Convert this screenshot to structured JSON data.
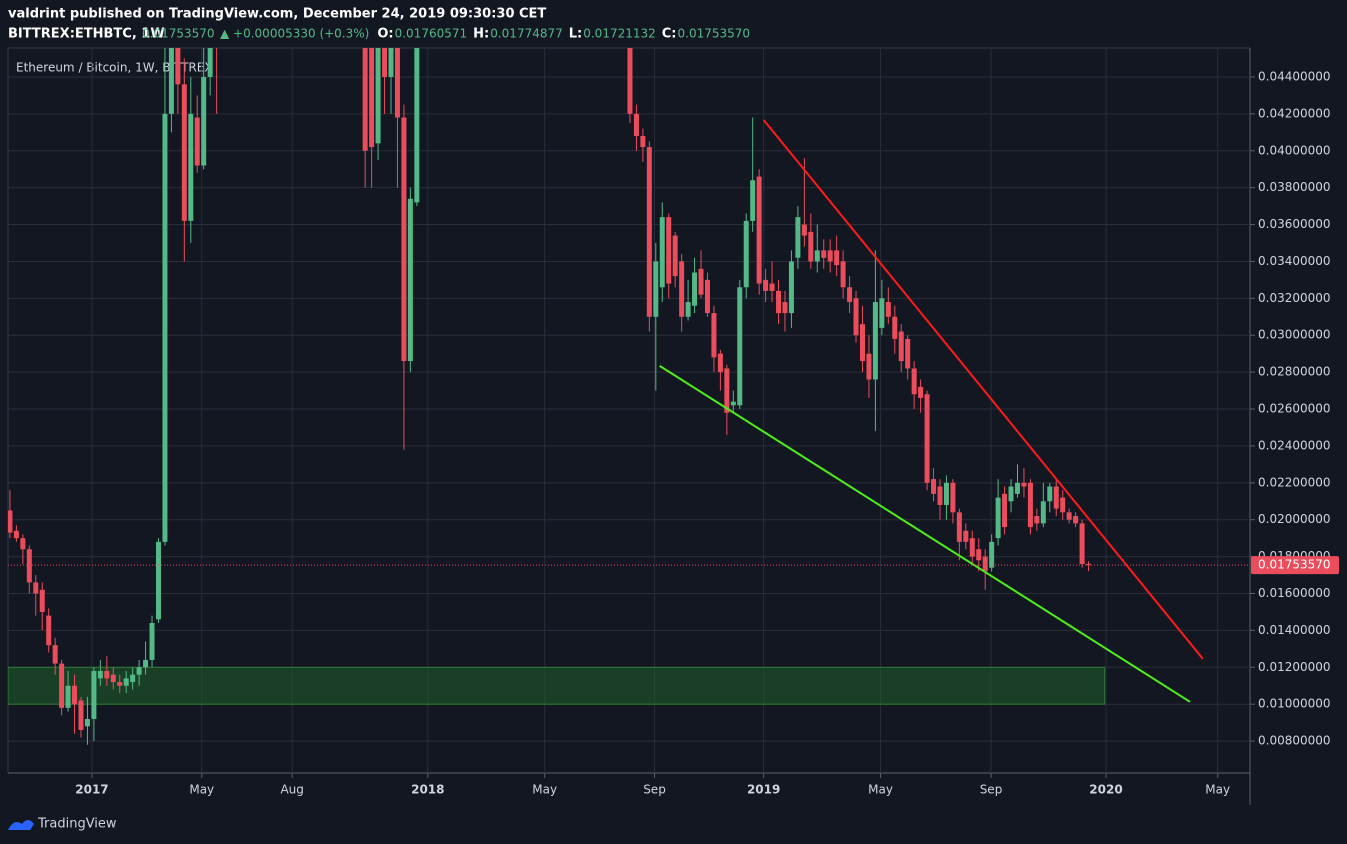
{
  "header": {
    "published": "valdrint published on TradingView.com, December 24, 2019 09:30:30 CET",
    "symbol": "BITTREX:ETHBTC, 1W",
    "price": "0.01753570",
    "change": "▲ +0.00005330 (+0.3%)",
    "ohlc": [
      {
        "label": "O:",
        "value": "0.01760571"
      },
      {
        "label": "H:",
        "value": "0.01774877"
      },
      {
        "label": "L:",
        "value": "0.01721132"
      },
      {
        "label": "C:",
        "value": "0.01753570"
      }
    ]
  },
  "footer": {
    "brand": "TradingView"
  },
  "chart_data": {
    "type": "candlestick",
    "title": "Ethereum / Bitcoin, 1W, BITTREX",
    "up_color": "#53b987",
    "down_color": "#eb4d5c",
    "grid": true,
    "ylim": [
      0.00627,
      0.04557
    ],
    "xlim": [
      -0.3,
      192
    ],
    "yticks": [
      {
        "value": 0.008,
        "label": "0.00800000"
      },
      {
        "value": 0.01,
        "label": "0.01000000"
      },
      {
        "value": 0.012,
        "label": "0.01200000"
      },
      {
        "value": 0.014,
        "label": "0.01400000"
      },
      {
        "value": 0.016,
        "label": "0.01600000"
      },
      {
        "value": 0.018,
        "label": "0.01800000"
      },
      {
        "value": 0.02,
        "label": "0.02000000"
      },
      {
        "value": 0.022,
        "label": "0.02200000"
      },
      {
        "value": 0.024,
        "label": "0.02400000"
      },
      {
        "value": 0.026,
        "label": "0.02600000"
      },
      {
        "value": 0.028,
        "label": "0.02800000"
      },
      {
        "value": 0.03,
        "label": "0.03000000"
      },
      {
        "value": 0.032,
        "label": "0.03200000"
      },
      {
        "value": 0.034,
        "label": "0.03400000"
      },
      {
        "value": 0.036,
        "label": "0.03600000"
      },
      {
        "value": 0.038,
        "label": "0.03800000"
      },
      {
        "value": 0.04,
        "label": "0.04000000"
      },
      {
        "value": 0.042,
        "label": "0.04200000"
      },
      {
        "value": 0.044,
        "label": "0.04400000"
      }
    ],
    "xticks": [
      {
        "value": 12.7,
        "label": "2017"
      },
      {
        "value": 29.7,
        "label": "May"
      },
      {
        "value": 43.7,
        "label": "Aug"
      },
      {
        "value": 64.7,
        "label": "2018"
      },
      {
        "value": 82.8,
        "label": "May"
      },
      {
        "value": 99.8,
        "label": "Sep"
      },
      {
        "value": 116.7,
        "label": "2019"
      },
      {
        "value": 134.8,
        "label": "May"
      },
      {
        "value": 151.9,
        "label": "Sep"
      },
      {
        "value": 169.7,
        "label": "2020"
      },
      {
        "value": 187.0,
        "label": "May"
      }
    ],
    "last_price": 0.0175357,
    "last_price_label": "0.01753570",
    "last_price_color": "#eb4d5c",
    "zones": [
      {
        "from": 0.01,
        "to": 0.012,
        "xend": 169.5,
        "color": "#1e5a2a"
      }
    ],
    "trendlines": [
      {
        "color": "#ff1a1a",
        "points": [
          [
            116.7,
            0.04167
          ],
          [
            184.7,
            0.01246
          ]
        ]
      },
      {
        "color": "#4cef1a",
        "points": [
          [
            100.6,
            0.02834
          ],
          [
            182.7,
            0.01013
          ]
        ]
      }
    ],
    "candles": [
      [
        0.0205,
        0.0216,
        0.019,
        0.0193
      ],
      [
        0.0194,
        0.0197,
        0.0188,
        0.019
      ],
      [
        0.019,
        0.0192,
        0.0176,
        0.0184
      ],
      [
        0.0184,
        0.0186,
        0.016,
        0.0166
      ],
      [
        0.0166,
        0.017,
        0.0148,
        0.016
      ],
      [
        0.0162,
        0.0166,
        0.014,
        0.015
      ],
      [
        0.0148,
        0.0152,
        0.0128,
        0.0132
      ],
      [
        0.0132,
        0.0136,
        0.0116,
        0.0122
      ],
      [
        0.0122,
        0.0124,
        0.0094,
        0.0098
      ],
      [
        0.0098,
        0.0118,
        0.0096,
        0.011
      ],
      [
        0.011,
        0.0116,
        0.0084,
        0.01
      ],
      [
        0.0102,
        0.0104,
        0.0082,
        0.0086
      ],
      [
        0.0088,
        0.0104,
        0.0078,
        0.0092
      ],
      [
        0.0092,
        0.012,
        0.008,
        0.0118
      ],
      [
        0.0114,
        0.0124,
        0.011,
        0.0118
      ],
      [
        0.0118,
        0.0126,
        0.011,
        0.0114
      ],
      [
        0.0116,
        0.012,
        0.0108,
        0.0112
      ],
      [
        0.0112,
        0.0116,
        0.0106,
        0.011
      ],
      [
        0.011,
        0.0118,
        0.0106,
        0.0114
      ],
      [
        0.0112,
        0.012,
        0.0108,
        0.0116
      ],
      [
        0.0116,
        0.0124,
        0.011,
        0.012
      ],
      [
        0.012,
        0.0134,
        0.0116,
        0.0124
      ],
      [
        0.0124,
        0.0148,
        0.012,
        0.0144
      ],
      [
        0.0146,
        0.019,
        0.0144,
        0.0188
      ],
      [
        0.0188,
        0.046,
        0.0186,
        0.042
      ],
      [
        0.042,
        0.05,
        0.041,
        0.046
      ],
      [
        0.047,
        0.049,
        0.042,
        0.0436
      ],
      [
        0.0436,
        0.045,
        0.034,
        0.0362
      ],
      [
        0.0362,
        0.044,
        0.035,
        0.042
      ],
      [
        0.0418,
        0.043,
        0.0388,
        0.0392
      ],
      [
        0.0392,
        0.046,
        0.039,
        0.044
      ],
      [
        0.044,
        0.05,
        0.043,
        0.047
      ],
      [
        0.05,
        0.051,
        0.042,
        0.047
      ],
      null,
      null,
      null,
      null,
      null,
      null,
      null,
      null,
      null,
      null,
      null,
      null,
      null,
      null,
      null,
      null,
      null,
      null,
      null,
      null,
      null,
      null,
      [
        0.047,
        0.05,
        0.038,
        0.04
      ],
      [
        0.046,
        0.05,
        0.038,
        0.0402
      ],
      [
        0.0404,
        0.05,
        0.0395,
        0.046
      ],
      [
        0.047,
        0.05,
        0.042,
        0.044
      ],
      [
        0.044,
        0.05,
        0.042,
        0.047
      ],
      [
        0.046,
        0.048,
        0.038,
        0.0418
      ],
      [
        0.0418,
        0.0425,
        0.0238,
        0.0286
      ],
      [
        0.0286,
        0.038,
        0.028,
        0.0374
      ],
      [
        0.0372,
        0.05,
        0.037,
        0.047
      ],
      null,
      null,
      null,
      null,
      null,
      null,
      null,
      null,
      null,
      null,
      null,
      null,
      null,
      null,
      null,
      null,
      null,
      null,
      null,
      null,
      null,
      null,
      null,
      null,
      null,
      null,
      null,
      null,
      null,
      null,
      null,
      null,
      [
        0.046,
        0.05,
        0.0415,
        0.042
      ],
      [
        0.042,
        0.0425,
        0.04,
        0.0408
      ],
      [
        0.0408,
        0.0412,
        0.0394,
        0.0402
      ],
      [
        0.0402,
        0.0405,
        0.0302,
        0.031
      ],
      [
        0.031,
        0.035,
        0.027,
        0.034
      ],
      [
        0.0326,
        0.0372,
        0.0318,
        0.0364
      ],
      [
        0.0364,
        0.0366,
        0.032,
        0.0328
      ],
      [
        0.0354,
        0.0356,
        0.0326,
        0.0332
      ],
      [
        0.034,
        0.0344,
        0.0302,
        0.031
      ],
      [
        0.031,
        0.033,
        0.0308,
        0.0318
      ],
      [
        0.0316,
        0.0342,
        0.0312,
        0.0334
      ],
      [
        0.0336,
        0.0346,
        0.032,
        0.0322
      ],
      [
        0.033,
        0.0334,
        0.031,
        0.0312
      ],
      [
        0.0312,
        0.0316,
        0.028,
        0.0288
      ],
      [
        0.029,
        0.0292,
        0.027,
        0.028
      ],
      [
        0.0282,
        0.0284,
        0.0246,
        0.0258
      ],
      [
        0.0262,
        0.027,
        0.0258,
        0.0264
      ],
      [
        0.0262,
        0.033,
        0.026,
        0.0326
      ],
      [
        0.0326,
        0.0366,
        0.032,
        0.0362
      ],
      [
        0.0362,
        0.0418,
        0.0356,
        0.0384
      ],
      [
        0.0386,
        0.039,
        0.0322,
        0.0328
      ],
      [
        0.033,
        0.0336,
        0.0318,
        0.0324
      ],
      [
        0.0328,
        0.034,
        0.0318,
        0.0324
      ],
      [
        0.0324,
        0.033,
        0.0306,
        0.0312
      ],
      [
        0.0318,
        0.0324,
        0.0302,
        0.0312
      ],
      [
        0.0312,
        0.0346,
        0.0304,
        0.034
      ],
      [
        0.0342,
        0.037,
        0.0336,
        0.0364
      ],
      [
        0.036,
        0.0396,
        0.0348,
        0.0354
      ],
      [
        0.0356,
        0.0366,
        0.0336,
        0.034
      ],
      [
        0.034,
        0.036,
        0.0334,
        0.0346
      ],
      [
        0.0346,
        0.0352,
        0.0336,
        0.0342
      ],
      [
        0.0346,
        0.0352,
        0.0334,
        0.034
      ],
      [
        0.0346,
        0.0354,
        0.0332,
        0.0338
      ],
      [
        0.034,
        0.0346,
        0.032,
        0.0326
      ],
      [
        0.0326,
        0.0332,
        0.0312,
        0.0318
      ],
      [
        0.032,
        0.0324,
        0.0296,
        0.03
      ],
      [
        0.0306,
        0.0316,
        0.028,
        0.0286
      ],
      [
        0.029,
        0.03,
        0.0266,
        0.0276
      ],
      [
        0.0276,
        0.0346,
        0.0248,
        0.0318
      ],
      [
        0.0304,
        0.033,
        0.03,
        0.032
      ],
      [
        0.0318,
        0.0326,
        0.0306,
        0.031
      ],
      [
        0.031,
        0.0316,
        0.029,
        0.0298
      ],
      [
        0.0302,
        0.0306,
        0.028,
        0.0286
      ],
      [
        0.0298,
        0.03,
        0.0276,
        0.0282
      ],
      [
        0.0282,
        0.0286,
        0.026,
        0.0268
      ],
      [
        0.0272,
        0.0276,
        0.0258,
        0.0266
      ],
      [
        0.0268,
        0.027,
        0.0216,
        0.022
      ],
      [
        0.0222,
        0.0228,
        0.021,
        0.0214
      ],
      [
        0.0218,
        0.0222,
        0.02,
        0.0208
      ],
      [
        0.0208,
        0.0224,
        0.02,
        0.022
      ],
      [
        0.022,
        0.0222,
        0.0198,
        0.0204
      ],
      [
        0.0204,
        0.0206,
        0.0178,
        0.0188
      ],
      [
        0.0194,
        0.0198,
        0.0184,
        0.0188
      ],
      [
        0.019,
        0.0194,
        0.0176,
        0.018
      ],
      [
        0.0184,
        0.019,
        0.0172,
        0.0178
      ],
      [
        0.018,
        0.0184,
        0.0162,
        0.0172
      ],
      [
        0.0174,
        0.0192,
        0.0172,
        0.0188
      ],
      [
        0.019,
        0.0222,
        0.0186,
        0.0212
      ],
      [
        0.0214,
        0.0218,
        0.0192,
        0.0196
      ],
      [
        0.021,
        0.0222,
        0.0204,
        0.0218
      ],
      [
        0.0214,
        0.023,
        0.0212,
        0.022
      ],
      [
        0.022,
        0.0228,
        0.0212,
        0.0218
      ],
      [
        0.022,
        0.0222,
        0.0192,
        0.0196
      ],
      [
        0.0202,
        0.0206,
        0.0194,
        0.0198
      ],
      [
        0.0198,
        0.022,
        0.0196,
        0.021
      ],
      [
        0.021,
        0.022,
        0.0204,
        0.0218
      ],
      [
        0.0218,
        0.0222,
        0.0202,
        0.0206
      ],
      [
        0.0212,
        0.0216,
        0.02,
        0.0204
      ],
      [
        0.0204,
        0.0206,
        0.0198,
        0.02
      ],
      [
        0.0202,
        0.0204,
        0.0196,
        0.0198
      ],
      [
        0.0198,
        0.02,
        0.0174,
        0.0176
      ],
      [
        0.0176057,
        0.0177488,
        0.0172113,
        0.0175357
      ]
    ]
  }
}
